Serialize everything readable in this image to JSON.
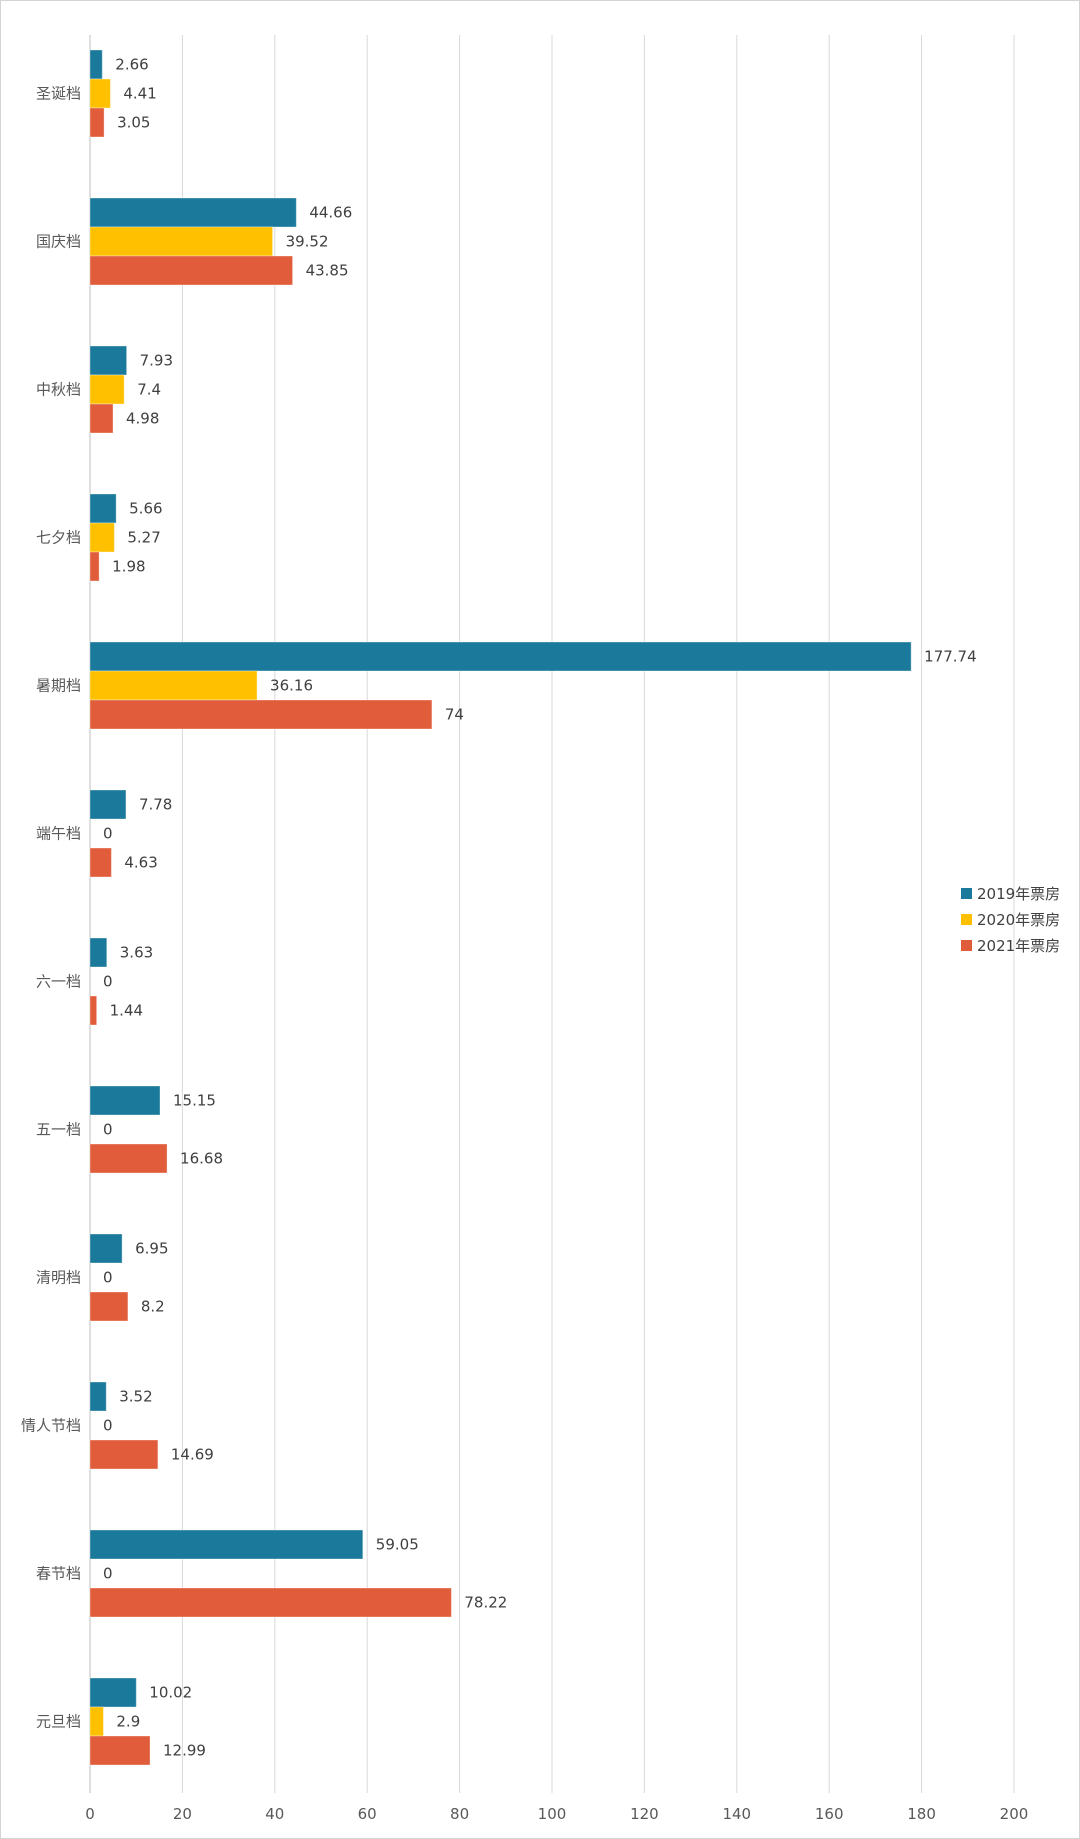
{
  "chart_data": {
    "type": "bar",
    "orientation": "horizontal",
    "title": "",
    "xlabel": "",
    "ylabel": "",
    "xlim": [
      0,
      200
    ],
    "x_ticks": [
      0,
      20,
      40,
      60,
      80,
      100,
      120,
      140,
      160,
      180,
      200
    ],
    "grid": true,
    "legend_position": "right",
    "categories": [
      "圣诞档",
      "国庆档",
      "中秋档",
      "七夕档",
      "暑期档",
      "端午档",
      "六一档",
      "五一档",
      "清明档",
      "情人节档",
      "春节档",
      "元旦档"
    ],
    "series": [
      {
        "name": "2019年票房",
        "color": "#1b7a9b",
        "values": [
          2.66,
          44.66,
          7.93,
          5.66,
          177.74,
          7.78,
          3.63,
          15.15,
          6.95,
          3.52,
          59.05,
          10.02
        ]
      },
      {
        "name": "2020年票房",
        "color": "#ffc000",
        "values": [
          4.41,
          39.52,
          7.4,
          5.27,
          36.16,
          0,
          0,
          0,
          0,
          0,
          0,
          2.9
        ]
      },
      {
        "name": "2021年票房",
        "color": "#e05c3a",
        "values": [
          3.05,
          43.85,
          4.98,
          1.98,
          74,
          4.63,
          1.44,
          16.68,
          8.2,
          14.69,
          78.22,
          12.99
        ]
      }
    ]
  }
}
